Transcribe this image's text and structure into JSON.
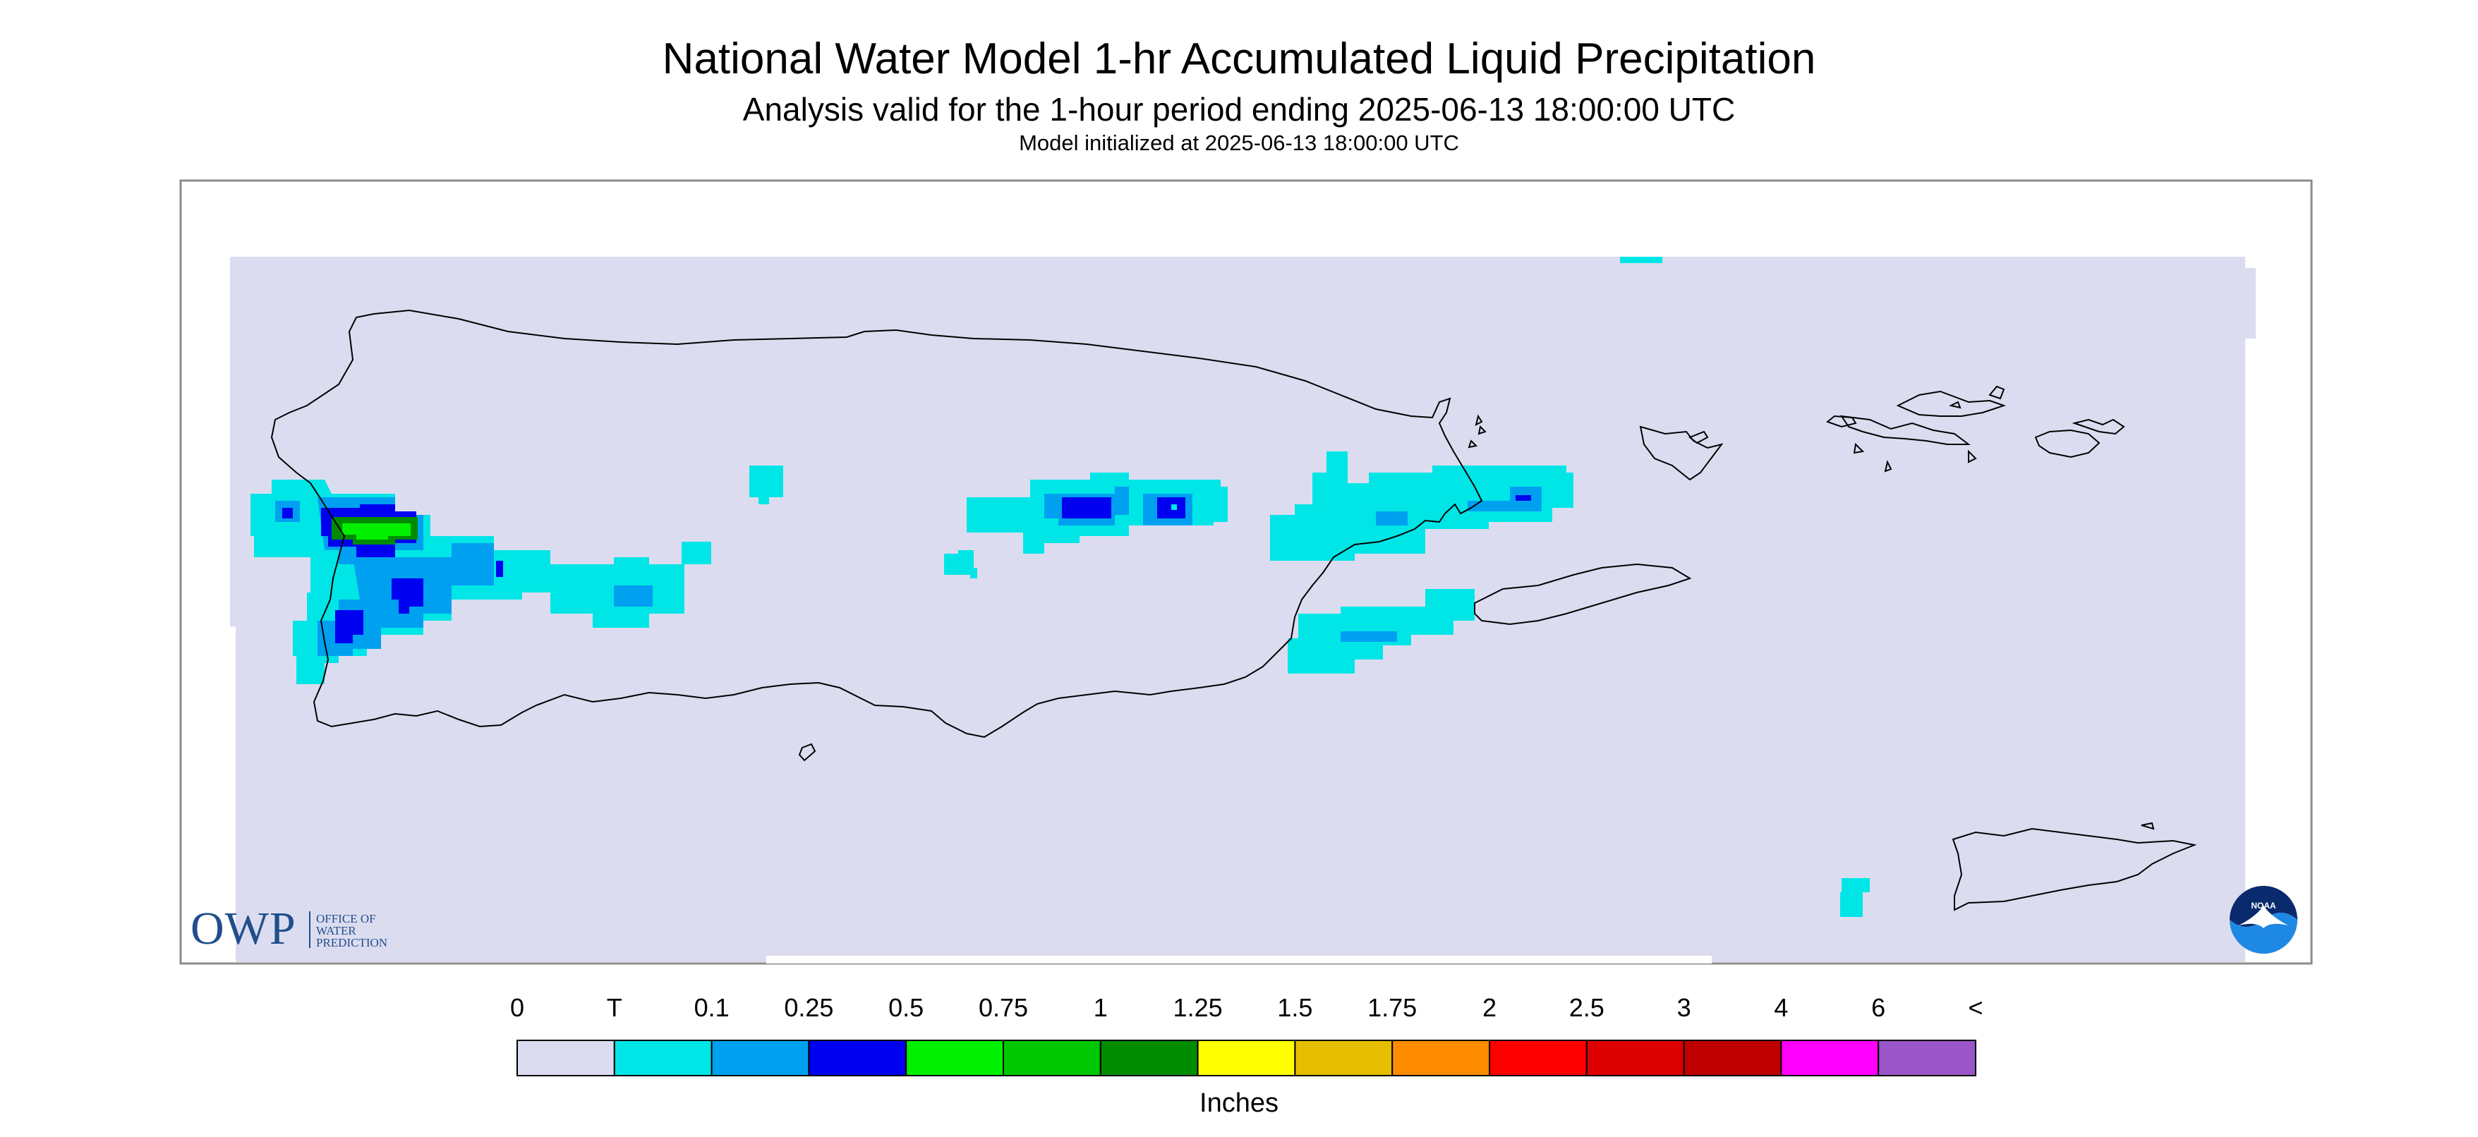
{
  "header": {
    "title": "National Water Model 1-hr Accumulated Liquid Precipitation",
    "subtitle": "Analysis valid for the 1-hour period ending 2025-06-13 18:00:00 UTC",
    "init_line": "Model initialized at 2025-06-13 18:00:00 UTC"
  },
  "legend": {
    "unit_label": "Inches",
    "bins": [
      {
        "label": "0",
        "color": "#dcdcf0"
      },
      {
        "label": "T",
        "color": "#00e6e6"
      },
      {
        "label": "0.1",
        "color": "#00a0f0"
      },
      {
        "label": "0.25",
        "color": "#0000f0"
      },
      {
        "label": "0.5",
        "color": "#00f000"
      },
      {
        "label": "0.75",
        "color": "#00c800"
      },
      {
        "label": "1",
        "color": "#008c00"
      },
      {
        "label": "1.25",
        "color": "#ffff00"
      },
      {
        "label": "1.5",
        "color": "#e6be00"
      },
      {
        "label": "1.75",
        "color": "#ff8c00"
      },
      {
        "label": "2",
        "color": "#ff0000"
      },
      {
        "label": "2.5",
        "color": "#dc0000"
      },
      {
        "label": "3",
        "color": "#be0000"
      },
      {
        "label": "4",
        "color": "#ff00ff"
      },
      {
        "label": "6",
        "color": "#9a55c8"
      }
    ],
    "end_label": "<"
  },
  "logos": {
    "owp_mark": "OWP",
    "owp_text": [
      "OFFICE OF",
      "WATER",
      "PREDICTION"
    ],
    "noaa_text": "NOAA"
  },
  "map": {
    "background_color": "#dcdcf0",
    "precip_cells": [
      {
        "level": 1,
        "color": "#00e6e6"
      },
      {
        "level": 2,
        "color": "#00a0f0"
      },
      {
        "level": 3,
        "color": "#0000f0"
      },
      {
        "level": 4,
        "color": "#00f000"
      },
      {
        "level": 6,
        "color": "#008c00"
      }
    ]
  }
}
